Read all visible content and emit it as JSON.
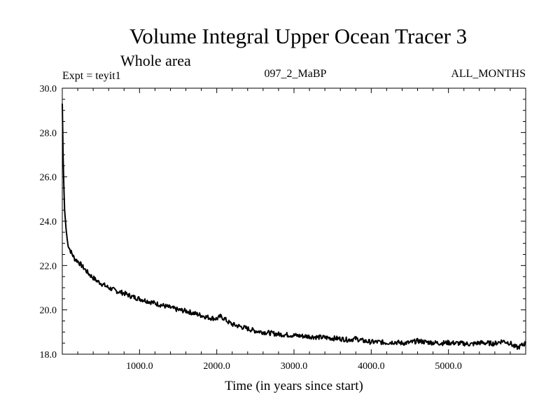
{
  "chart_data": {
    "type": "line",
    "title": "Volume Integral Upper Ocean Tracer 3",
    "subtitle": "Whole area",
    "experiment_label": "Expt = teyit1",
    "run_label": "097_2_MaBP",
    "months_label": "ALL_MONTHS",
    "xlabel": "Time (in years since start)",
    "ylabel": "",
    "xlim": [
      0,
      6000
    ],
    "ylim": [
      18.0,
      30.0
    ],
    "x_ticks": [
      1000,
      2000,
      3000,
      4000,
      5000
    ],
    "x_tick_labels": [
      "1000.0",
      "2000.0",
      "3000.0",
      "4000.0",
      "5000.0"
    ],
    "y_ticks": [
      18,
      20,
      22,
      24,
      26,
      28,
      30
    ],
    "y_tick_labels": [
      "18.0",
      "20.0",
      "22.0",
      "24.0",
      "26.0",
      "28.0",
      "30.0"
    ],
    "grid": false,
    "line_color": "#000000",
    "series": [
      {
        "x": [
          0,
          5,
          10,
          20,
          30,
          50,
          70,
          100,
          130,
          160,
          200,
          250,
          300,
          350,
          400,
          450,
          500,
          600,
          700,
          800,
          900,
          1000,
          1100,
          1200,
          1300,
          1400,
          1500,
          1600,
          1700,
          1800,
          1900,
          2000,
          2050,
          2100,
          2150,
          2200,
          2300,
          2400,
          2500,
          2600,
          2700,
          2800,
          2900,
          3000,
          3100,
          3200,
          3300,
          3400,
          3500,
          3600,
          3700,
          3800,
          3900,
          4000,
          4100,
          4200,
          4300,
          4400,
          4500,
          4600,
          4700,
          4800,
          4900,
          5000,
          5100,
          5200,
          5300,
          5400,
          5500,
          5600,
          5700,
          5750,
          5800,
          5850,
          5900,
          5950,
          6000
        ],
        "y": [
          29.3,
          28.2,
          27.0,
          25.6,
          24.5,
          23.6,
          23.0,
          22.7,
          22.5,
          22.3,
          22.2,
          22.0,
          21.8,
          21.6,
          21.45,
          21.3,
          21.2,
          21.0,
          20.85,
          20.75,
          20.6,
          20.5,
          20.4,
          20.3,
          20.2,
          20.1,
          20.0,
          19.95,
          19.85,
          19.75,
          19.65,
          19.6,
          19.7,
          19.6,
          19.45,
          19.35,
          19.25,
          19.15,
          19.05,
          19.0,
          18.95,
          18.9,
          18.88,
          18.85,
          18.82,
          18.8,
          18.77,
          18.75,
          18.72,
          18.7,
          18.65,
          18.7,
          18.6,
          18.55,
          18.55,
          18.52,
          18.55,
          18.5,
          18.52,
          18.6,
          18.55,
          18.52,
          18.5,
          18.52,
          18.5,
          18.48,
          18.45,
          18.52,
          18.5,
          18.48,
          18.6,
          18.55,
          18.5,
          18.35,
          18.3,
          18.4,
          18.5
        ]
      }
    ]
  }
}
